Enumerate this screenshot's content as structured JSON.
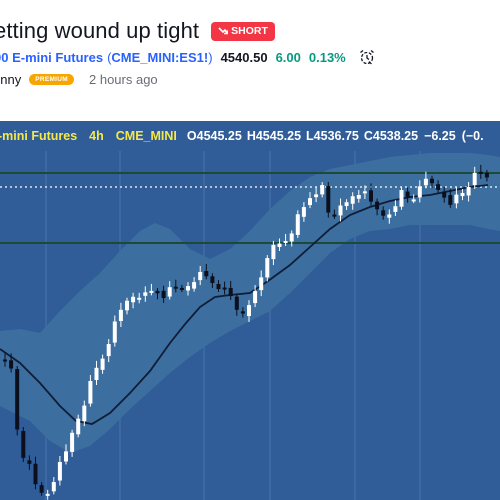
{
  "post": {
    "title": "etting wound up tight",
    "badge": "SHORT"
  },
  "symbol": {
    "name": "00 E-mini Futures",
    "paren_open": "(",
    "ticker": "CME_MINI:ES1!",
    "paren_close": ")",
    "price": "4540.50",
    "change": "6.00",
    "change_pct": "0.13%"
  },
  "author": {
    "name": "unny",
    "badge": "PREMIUM",
    "time_ago": "2 hours ago"
  },
  "legend": {
    "symbol": "-mini Futures",
    "timeframe": "4h",
    "exchange": "CME_MINI",
    "open_key": "O",
    "open": "4545.25",
    "high_key": "H",
    "high": "4545.25",
    "low_key": "L",
    "low": "4536.75",
    "close_key": "C",
    "close": "4538.25",
    "change": "−6.25",
    "change_pct": "(−0."
  },
  "colors": {
    "chart_bg": "#305c98",
    "band": "#3c6f9f",
    "sr_line": "#1d4a35",
    "ma_line": "#0f1d36",
    "candle_up": "#ffffff",
    "candle_down": "#0b0f1e",
    "short": "#f23645",
    "up_text": "#089981",
    "link": "#2962ff",
    "premium": "#f7a600"
  },
  "icons": {
    "badge": "trend-down-arrow-icon",
    "alarm": "alarm-clock-icon"
  }
}
